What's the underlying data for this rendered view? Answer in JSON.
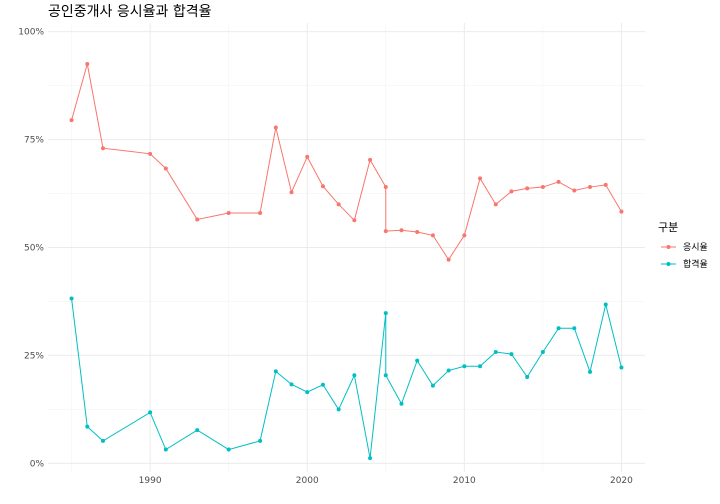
{
  "chart_data": {
    "type": "line",
    "title": "공인중개사 응시율과 합격율",
    "xlabel": "",
    "ylabel": "",
    "xlim": [
      1983.5,
      2021.5
    ],
    "ylim": [
      -0.02,
      1.02
    ],
    "x_ticks": [
      1990,
      2000,
      2010,
      2020
    ],
    "y_ticks": [
      {
        "value": 0,
        "label": "0%"
      },
      {
        "value": 0.25,
        "label": "25%"
      },
      {
        "value": 0.5,
        "label": "50%"
      },
      {
        "value": 0.75,
        "label": "75%"
      },
      {
        "value": 1.0,
        "label": "100%"
      }
    ],
    "grid": true,
    "legend": {
      "title": "구분",
      "position": "right"
    },
    "x": [
      1985,
      1986,
      1987,
      1990,
      1991,
      1993,
      1995,
      1997,
      1998,
      1999,
      2000,
      2001,
      2002,
      2003,
      2004,
      2005,
      2005,
      2006,
      2007,
      2008,
      2009,
      2010,
      2011,
      2012,
      2013,
      2014,
      2015,
      2016,
      2017,
      2018,
      2019,
      2020
    ],
    "series": [
      {
        "name": "응시율",
        "color": "#F8766D",
        "values": [
          0.795,
          0.925,
          0.73,
          0.717,
          0.683,
          0.565,
          0.58,
          0.58,
          0.778,
          0.628,
          0.71,
          0.642,
          0.6,
          0.563,
          0.703,
          0.64,
          0.538,
          0.54,
          0.536,
          0.528,
          0.472,
          0.528,
          0.66,
          0.6,
          0.63,
          0.637,
          0.64,
          0.652,
          0.632,
          0.64,
          0.645,
          0.583
        ]
      },
      {
        "name": "합격율",
        "color": "#00BFC4",
        "values": [
          0.382,
          0.085,
          0.052,
          0.118,
          0.032,
          0.077,
          0.032,
          0.052,
          0.213,
          0.183,
          0.165,
          0.182,
          0.125,
          0.204,
          0.012,
          0.348,
          0.204,
          0.138,
          0.238,
          0.18,
          0.215,
          0.225,
          0.225,
          0.258,
          0.253,
          0.2,
          0.258,
          0.313,
          0.313,
          0.212,
          0.368,
          0.222
        ]
      }
    ]
  }
}
